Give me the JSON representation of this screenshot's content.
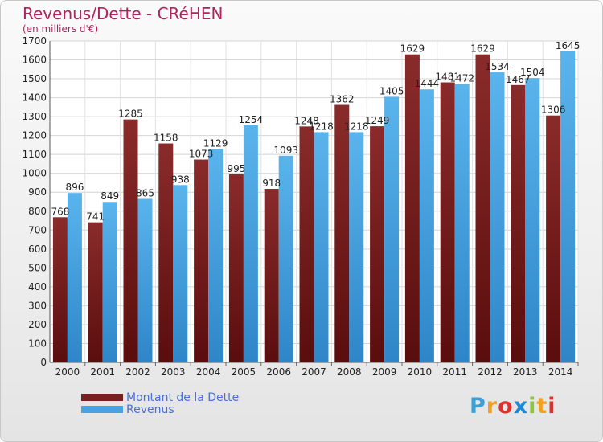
{
  "header": {
    "title": "Revenus/Dette - CRéHEN",
    "subtitle": "(en milliers d'€)"
  },
  "chart_data": {
    "type": "bar",
    "categories": [
      "2000",
      "2001",
      "2002",
      "2003",
      "2004",
      "2005",
      "2006",
      "2007",
      "2008",
      "2009",
      "2010",
      "2011",
      "2012",
      "2013",
      "2014"
    ],
    "series": [
      {
        "name": "Montant de la Dette",
        "color": "#7a1f1f",
        "values": [
          768,
          741,
          1285,
          1158,
          1073,
          995,
          918,
          1248,
          1362,
          1249,
          1629,
          1481,
          1629,
          1467,
          1306
        ],
        "labels": [
          "768",
          "741",
          "1285",
          "1158",
          "1073",
          "995",
          "918",
          "1248",
          "1362",
          "1249",
          "1629",
          "1481",
          "1629",
          "1467",
          "1306"
        ]
      },
      {
        "name": "Revenus",
        "color": "#4aa3e0",
        "values": [
          896,
          849,
          865,
          938,
          1129,
          1254,
          1093,
          1218,
          1218,
          1405,
          1444,
          1472,
          1534,
          1504,
          1645
        ],
        "labels": [
          "896",
          "849",
          "865",
          "938",
          "1129",
          "1254",
          "1093",
          "1218",
          "1218",
          "1405",
          "1444",
          "1472",
          "1534",
          "1504",
          "1645"
        ]
      }
    ],
    "ylim": [
      0,
      1700
    ],
    "yticks": [
      "0",
      "100",
      "200",
      "300",
      "400",
      "500",
      "600",
      "700",
      "800",
      "900",
      "1000",
      "1100",
      "1200",
      "1300",
      "1400",
      "1500",
      "1600",
      "1700"
    ],
    "grid": true,
    "legend_position": "bottom-left"
  },
  "legend": {
    "items": [
      {
        "label": "Montant de la Dette",
        "color": "#7a1f1f"
      },
      {
        "label": "Revenus",
        "color": "#4aa3e0"
      }
    ]
  },
  "logo": {
    "letters": [
      "P",
      "r",
      "o",
      "x",
      "i",
      "t",
      "i"
    ],
    "colors": [
      "#3aa0d8",
      "#f2a020",
      "#e0302c",
      "#1e88d0",
      "#8cc63f",
      "#f2a020",
      "#e0302c"
    ]
  }
}
